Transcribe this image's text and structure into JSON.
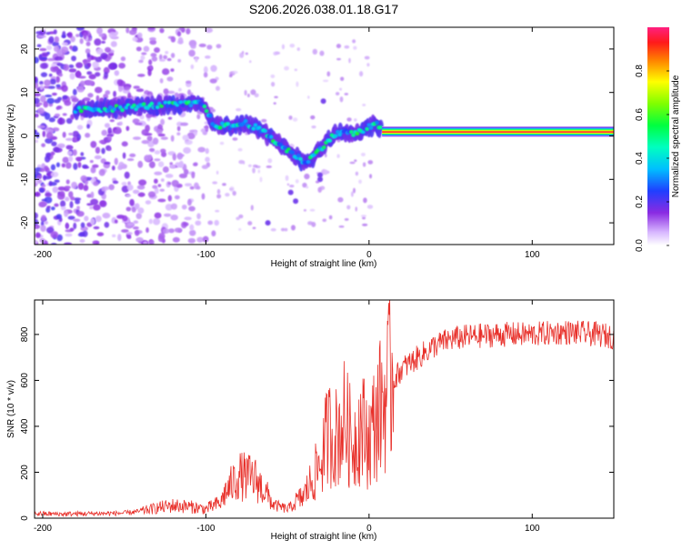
{
  "figure": {
    "title": "S206.2026.038.01.18.G17"
  },
  "chart_data": [
    {
      "type": "heatmap",
      "panel": "top",
      "xlabel": "Height of straight line (km)",
      "ylabel": "Frequency (Hz)",
      "xlim": [
        -205,
        150
      ],
      "ylim": [
        -25,
        25
      ],
      "x_ticks": [
        -200,
        -100,
        0,
        100
      ],
      "x_tick_labels": [
        "-200",
        "-100",
        "0",
        "100"
      ],
      "y_ticks": [
        -20,
        -10,
        0,
        10,
        20
      ],
      "y_tick_labels": [
        "-20",
        "-10",
        "0",
        "10",
        "20"
      ],
      "colorbar": {
        "label": "Normalized spectral amplitude",
        "range": [
          0,
          1
        ],
        "ticks": [
          0,
          0.2,
          0.4,
          0.6,
          0.8
        ],
        "tick_labels": [
          "0.0",
          "0.2",
          "0.4",
          "0.6",
          "0.8"
        ],
        "colormap": "rainbow"
      },
      "ridge": {
        "x": [
          -180,
          -170,
          -160,
          -150,
          -140,
          -130,
          -120,
          -110,
          -102,
          -95,
          -85,
          -75,
          -65,
          -55,
          -45,
          -40,
          -35,
          -30,
          -25,
          -20,
          -15,
          -10,
          -5,
          0,
          5,
          8
        ],
        "frequency": [
          6,
          6.2,
          6.3,
          6.5,
          6.8,
          7,
          7.2,
          7.3,
          7.5,
          2.5,
          2.2,
          3,
          1,
          -2,
          -4.5,
          -6,
          -5,
          -3,
          -1,
          0.5,
          1,
          0.5,
          1,
          2,
          2.5,
          1.5
        ]
      },
      "tone": {
        "x_start": 8,
        "x_end": 150,
        "frequency": 1
      }
    },
    {
      "type": "line",
      "panel": "bottom",
      "xlabel": "Height of straight line (km)",
      "ylabel": "SNR (10 * v/v)",
      "xlim": [
        -205,
        150
      ],
      "ylim": [
        0,
        950
      ],
      "x_ticks": [
        -200,
        -100,
        0,
        100
      ],
      "x_tick_labels": [
        "-200",
        "-100",
        "0",
        "100"
      ],
      "y_ticks": [
        0,
        200,
        400,
        600,
        800
      ],
      "y_tick_labels": [
        "0",
        "200",
        "400",
        "600",
        "800"
      ],
      "series": [
        {
          "color": "#e8302a",
          "x": [
            -205,
            -190,
            -170,
            -150,
            -140,
            -130,
            -120,
            -110,
            -100,
            -90,
            -80,
            -70,
            -60,
            -50,
            -40,
            -30,
            -25,
            -20,
            -15,
            -10,
            -5,
            0,
            5,
            10,
            15,
            20,
            30,
            40,
            50,
            60,
            80,
            100,
            120,
            140,
            150
          ],
          "y": [
            20,
            18,
            20,
            22,
            30,
            45,
            55,
            50,
            40,
            70,
            140,
            130,
            60,
            40,
            90,
            220,
            350,
            330,
            400,
            300,
            380,
            320,
            420,
            500,
            600,
            650,
            700,
            750,
            780,
            790,
            800,
            800,
            810,
            800,
            790
          ]
        }
      ]
    }
  ]
}
